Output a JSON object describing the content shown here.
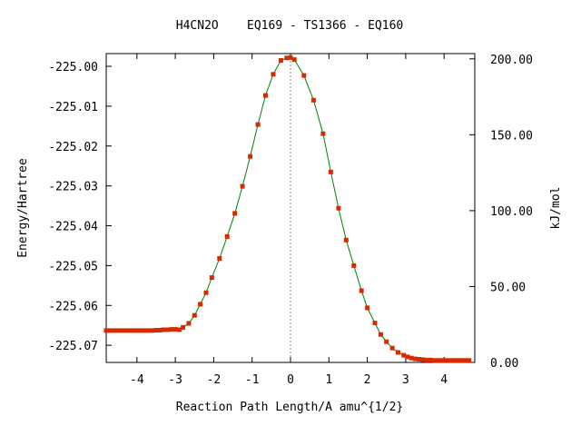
{
  "chart_data": {
    "type": "line",
    "title": "H4CN2O    EQ169 - TS1366 - EQ160",
    "xlabel": "Reaction Path Length/A amu^{1/2}",
    "ylabel": "Energy/Hartree",
    "ylabel_right": "kJ/mol",
    "xlim": [
      -4.8,
      4.8
    ],
    "ylim": [
      -225.0743,
      -224.9968
    ],
    "x_ticks": [
      -4,
      -3,
      -2,
      -1,
      0,
      1,
      2,
      3,
      4
    ],
    "x_tick_labels": [
      "-4",
      "-3",
      "-2",
      "-1",
      "0",
      "1",
      "2",
      "3",
      "4"
    ],
    "y_ticks": [
      -225.0,
      -225.01,
      -225.02,
      -225.03,
      -225.04,
      -225.05,
      -225.06,
      -225.07
    ],
    "y_tick_labels": [
      "-225.00",
      "-225.01",
      "-225.02",
      "-225.03",
      "-225.04",
      "-225.05",
      "-225.06",
      "-225.07"
    ],
    "y2_ticks": [
      0,
      50,
      100,
      150,
      200
    ],
    "y2_tick_labels": [
      "0.00",
      "50.00",
      "100.00",
      "150.00",
      "200.00"
    ],
    "y2_reference_energy": -225.0743,
    "hartree_to_kjmol": 2625.5,
    "ts_x": 0,
    "grid": false,
    "series": [
      {
        "color": "#008000",
        "marker_color": "#d82a00",
        "x": [
          -4.8,
          -4.7,
          -4.6,
          -4.5,
          -4.4,
          -4.3,
          -4.2,
          -4.1,
          -4.0,
          -3.9,
          -3.8,
          -3.7,
          -3.6,
          -3.5,
          -3.4,
          -3.3,
          -3.2,
          -3.1,
          -3.0,
          -2.9,
          -2.8,
          -2.65,
          -2.5,
          -2.35,
          -2.2,
          -2.05,
          -1.85,
          -1.65,
          -1.45,
          -1.25,
          -1.05,
          -0.85,
          -0.65,
          -0.45,
          -0.25,
          -0.1,
          0.0,
          0.1,
          0.35,
          0.6,
          0.85,
          1.05,
          1.25,
          1.45,
          1.65,
          1.85,
          2.0,
          2.2,
          2.35,
          2.5,
          2.65,
          2.8,
          2.95,
          3.05,
          3.15,
          3.25,
          3.35,
          3.45,
          3.55,
          3.65,
          3.75,
          3.85,
          3.95,
          4.05,
          4.15,
          4.25,
          4.35,
          4.45,
          4.55,
          4.65
        ],
        "y": [
          -225.0663,
          -225.0663,
          -225.0663,
          -225.0663,
          -225.0663,
          -225.0663,
          -225.0663,
          -225.0663,
          -225.0663,
          -225.0663,
          -225.0663,
          -225.0663,
          -225.0663,
          -225.0662,
          -225.0662,
          -225.0661,
          -225.0661,
          -225.066,
          -225.066,
          -225.0661,
          -225.0655,
          -225.0645,
          -225.0625,
          -225.0597,
          -225.0568,
          -225.053,
          -225.0482,
          -225.0427,
          -225.0369,
          -225.0301,
          -225.0226,
          -225.0146,
          -225.0073,
          -225.002,
          -224.9985,
          -224.9979,
          -224.9978,
          -224.9983,
          -225.0023,
          -225.0085,
          -225.0169,
          -225.0265,
          -225.0356,
          -225.0436,
          -225.05,
          -225.0563,
          -225.0606,
          -225.0644,
          -225.0673,
          -225.0691,
          -225.0707,
          -225.0718,
          -225.0725,
          -225.0729,
          -225.0732,
          -225.0734,
          -225.0735,
          -225.0736,
          -225.0737,
          -225.0737,
          -225.0738,
          -225.0738,
          -225.0738,
          -225.0738,
          -225.0738,
          -225.0738,
          -225.0738,
          -225.0738,
          -225.0738,
          -225.0738
        ]
      }
    ]
  }
}
